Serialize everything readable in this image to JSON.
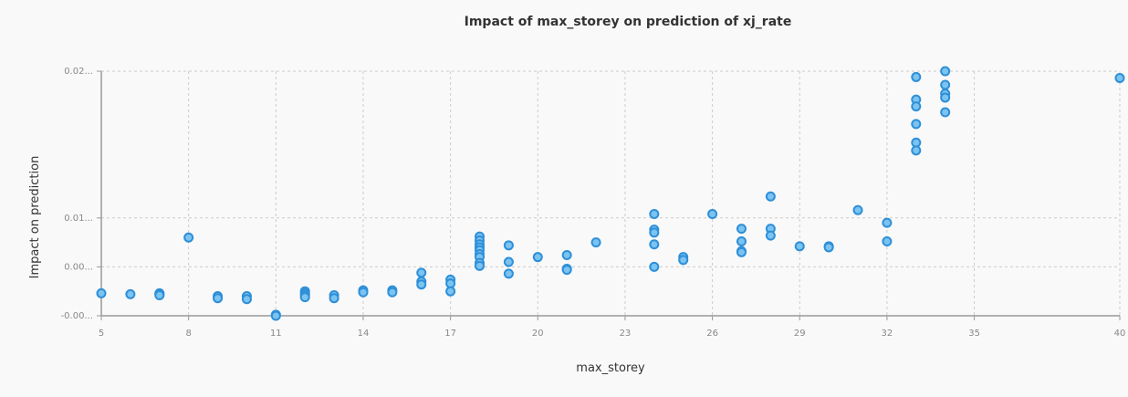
{
  "chart_data": {
    "type": "scatter",
    "title": "Impact of max_storey on prediction of xj_rate",
    "xlabel": "max_storey",
    "ylabel": "Impact on prediction",
    "xlim": [
      5,
      40
    ],
    "ylim": [
      -0.005,
      0.02
    ],
    "x_ticks": [
      5,
      8,
      11,
      14,
      17,
      20,
      23,
      26,
      29,
      32,
      35,
      40
    ],
    "x_tick_labels": [
      "5",
      "8",
      "11",
      "14",
      "17",
      "20",
      "23",
      "26",
      "29",
      "32",
      "35",
      "40"
    ],
    "y_ticks": [
      -0.005,
      0.0,
      0.005,
      0.02
    ],
    "y_tick_labels": [
      "-0.00...",
      "0.00...",
      "0.01...",
      "0.02..."
    ],
    "grid": true,
    "points": [
      {
        "x": 5,
        "y": -0.0027
      },
      {
        "x": 6,
        "y": -0.0028
      },
      {
        "x": 7,
        "y": -0.0027
      },
      {
        "x": 7,
        "y": -0.0028
      },
      {
        "x": 7,
        "y": -0.0029
      },
      {
        "x": 8,
        "y": 0.003
      },
      {
        "x": 9,
        "y": -0.003
      },
      {
        "x": 9,
        "y": -0.0032
      },
      {
        "x": 10,
        "y": -0.003
      },
      {
        "x": 10,
        "y": -0.0033
      },
      {
        "x": 11,
        "y": -0.0049
      },
      {
        "x": 11,
        "y": -0.005
      },
      {
        "x": 12,
        "y": -0.0025
      },
      {
        "x": 12,
        "y": -0.0027
      },
      {
        "x": 12,
        "y": -0.0029
      },
      {
        "x": 12,
        "y": -0.0031
      },
      {
        "x": 13,
        "y": -0.0029
      },
      {
        "x": 13,
        "y": -0.0032
      },
      {
        "x": 14,
        "y": -0.0024
      },
      {
        "x": 14,
        "y": -0.0026
      },
      {
        "x": 15,
        "y": -0.0024
      },
      {
        "x": 15,
        "y": -0.0026
      },
      {
        "x": 16,
        "y": -0.0006
      },
      {
        "x": 16,
        "y": -0.0015
      },
      {
        "x": 16,
        "y": -0.0018
      },
      {
        "x": 17,
        "y": -0.0013
      },
      {
        "x": 17,
        "y": -0.0017
      },
      {
        "x": 17,
        "y": -0.0025
      },
      {
        "x": 18,
        "y": 0.0031
      },
      {
        "x": 18,
        "y": 0.0027
      },
      {
        "x": 18,
        "y": 0.0023
      },
      {
        "x": 18,
        "y": 0.002
      },
      {
        "x": 18,
        "y": 0.0017
      },
      {
        "x": 18,
        "y": 0.0013
      },
      {
        "x": 18,
        "y": 0.001
      },
      {
        "x": 18,
        "y": 0.0004
      },
      {
        "x": 18,
        "y": 0.0001
      },
      {
        "x": 19,
        "y": 0.0022
      },
      {
        "x": 19,
        "y": 0.0005
      },
      {
        "x": 19,
        "y": -0.0007
      },
      {
        "x": 20,
        "y": 0.001
      },
      {
        "x": 21,
        "y": 0.0012
      },
      {
        "x": 21,
        "y": -0.0002
      },
      {
        "x": 21,
        "y": -0.0003
      },
      {
        "x": 22,
        "y": 0.0025
      },
      {
        "x": 24,
        "y": 0.0054
      },
      {
        "x": 24,
        "y": 0.0038
      },
      {
        "x": 24,
        "y": 0.0035
      },
      {
        "x": 24,
        "y": 0.0023
      },
      {
        "x": 24,
        "y": 0.0
      },
      {
        "x": 25,
        "y": 0.001
      },
      {
        "x": 25,
        "y": 0.0007
      },
      {
        "x": 26,
        "y": 0.0054
      },
      {
        "x": 27,
        "y": 0.0039
      },
      {
        "x": 27,
        "y": 0.0026
      },
      {
        "x": 27,
        "y": 0.0016
      },
      {
        "x": 27,
        "y": 0.0015
      },
      {
        "x": 28,
        "y": 0.0072
      },
      {
        "x": 28,
        "y": 0.0039
      },
      {
        "x": 28,
        "y": 0.0032
      },
      {
        "x": 29,
        "y": 0.0021
      },
      {
        "x": 30,
        "y": 0.0021
      },
      {
        "x": 30,
        "y": 0.002
      },
      {
        "x": 31,
        "y": 0.0058
      },
      {
        "x": 32,
        "y": 0.0045
      },
      {
        "x": 32,
        "y": 0.0026
      },
      {
        "x": 33,
        "y": 0.0194
      },
      {
        "x": 33,
        "y": 0.0171
      },
      {
        "x": 33,
        "y": 0.0164
      },
      {
        "x": 33,
        "y": 0.0146
      },
      {
        "x": 33,
        "y": 0.0127
      },
      {
        "x": 33,
        "y": 0.0119
      },
      {
        "x": 34,
        "y": 0.02
      },
      {
        "x": 34,
        "y": 0.0186
      },
      {
        "x": 34,
        "y": 0.0177
      },
      {
        "x": 34,
        "y": 0.0173
      },
      {
        "x": 34,
        "y": 0.0158
      },
      {
        "x": 40,
        "y": 0.0193
      }
    ]
  }
}
